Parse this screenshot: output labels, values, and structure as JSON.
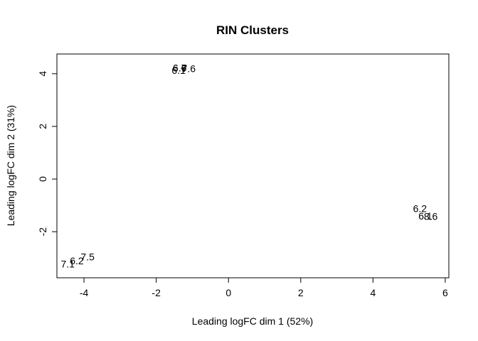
{
  "chart_data": {
    "type": "scatter",
    "title": "RIN Clusters",
    "xlabel": "Leading logFC dim 1 (52%)",
    "ylabel": "Leading logFC dim 2 (31%)",
    "xlim": [
      -4.75,
      6.1
    ],
    "ylim": [
      -3.75,
      4.75
    ],
    "x_ticks": [
      -4,
      -2,
      0,
      2,
      4,
      6
    ],
    "y_ticks": [
      -2,
      0,
      2,
      4
    ],
    "grid": false,
    "legend": null,
    "points": [
      {
        "label": "6.6",
        "x": -1.35,
        "y": 4.22
      },
      {
        "label": "6.7",
        "x": -1.35,
        "y": 4.22
      },
      {
        "label": "6.1",
        "x": -1.38,
        "y": 4.13
      },
      {
        "label": "7.6",
        "x": -1.1,
        "y": 4.2
      },
      {
        "label": "6.2",
        "x": 5.3,
        "y": -1.12
      },
      {
        "label": "6.1",
        "x": 5.45,
        "y": -1.4
      },
      {
        "label": "8.6",
        "x": 5.6,
        "y": -1.42
      },
      {
        "label": "7.5",
        "x": -3.9,
        "y": -2.95
      },
      {
        "label": "6.2",
        "x": -4.2,
        "y": -3.1
      },
      {
        "label": "7.1",
        "x": -4.45,
        "y": -3.23
      }
    ]
  }
}
